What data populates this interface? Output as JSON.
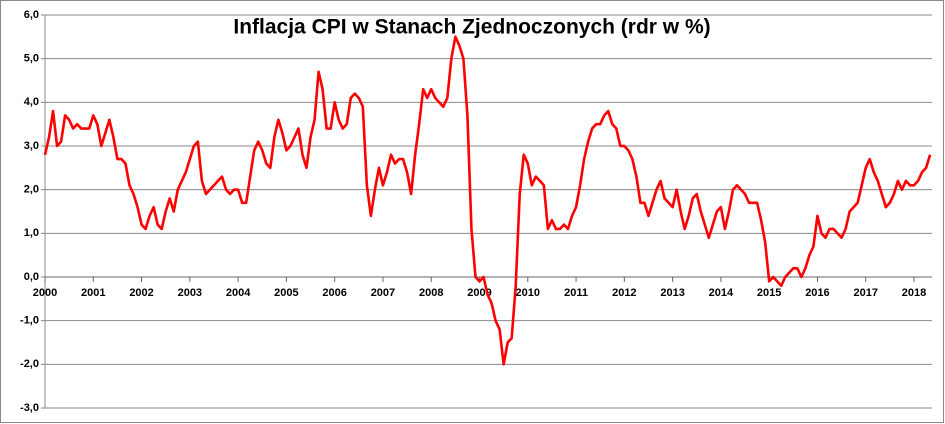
{
  "chart_data": {
    "type": "line",
    "title": "Inflacja CPI w Stanach Zjednoczonych (rdr w %)",
    "categories": [
      "2000",
      null,
      null,
      null,
      null,
      null,
      null,
      null,
      null,
      null,
      null,
      null,
      "2001",
      null,
      null,
      null,
      null,
      null,
      null,
      null,
      null,
      null,
      null,
      null,
      "2002",
      null,
      null,
      null,
      null,
      null,
      null,
      null,
      null,
      null,
      null,
      null,
      "2003",
      null,
      null,
      null,
      null,
      null,
      null,
      null,
      null,
      null,
      null,
      null,
      "2004",
      null,
      null,
      null,
      null,
      null,
      null,
      null,
      null,
      null,
      null,
      null,
      "2005",
      null,
      null,
      null,
      null,
      null,
      null,
      null,
      null,
      null,
      null,
      null,
      "2006",
      null,
      null,
      null,
      null,
      null,
      null,
      null,
      null,
      null,
      null,
      null,
      "2007",
      null,
      null,
      null,
      null,
      null,
      null,
      null,
      null,
      null,
      null,
      null,
      "2008",
      null,
      null,
      null,
      null,
      null,
      null,
      null,
      null,
      null,
      null,
      null,
      "2009",
      null,
      null,
      null,
      null,
      null,
      null,
      null,
      null,
      null,
      null,
      null,
      "2010",
      null,
      null,
      null,
      null,
      null,
      null,
      null,
      null,
      null,
      null,
      null,
      "2011",
      null,
      null,
      null,
      null,
      null,
      null,
      null,
      null,
      null,
      null,
      null,
      "2012",
      null,
      null,
      null,
      null,
      null,
      null,
      null,
      null,
      null,
      null,
      null,
      "2013",
      null,
      null,
      null,
      null,
      null,
      null,
      null,
      null,
      null,
      null,
      null,
      "2014",
      null,
      null,
      null,
      null,
      null,
      null,
      null,
      null,
      null,
      null,
      null,
      "2015",
      null,
      null,
      null,
      null,
      null,
      null,
      null,
      null,
      null,
      null,
      null,
      "2016",
      null,
      null,
      null,
      null,
      null,
      null,
      null,
      null,
      null,
      null,
      null,
      "2017",
      null,
      null,
      null,
      null,
      null,
      null,
      null,
      null,
      null,
      null,
      null,
      "2018",
      null,
      null,
      null,
      null
    ],
    "series": [
      {
        "name": "CPI",
        "color": "#ff0000",
        "values": [
          2.8,
          3.2,
          3.8,
          3.0,
          3.1,
          3.7,
          3.6,
          3.4,
          3.5,
          3.4,
          3.4,
          3.4,
          3.7,
          3.5,
          3.0,
          3.3,
          3.6,
          3.2,
          2.7,
          2.7,
          2.6,
          2.1,
          1.9,
          1.6,
          1.2,
          1.1,
          1.4,
          1.6,
          1.2,
          1.1,
          1.5,
          1.8,
          1.5,
          2.0,
          2.2,
          2.4,
          2.7,
          3.0,
          3.1,
          2.2,
          1.9,
          2.0,
          2.1,
          2.2,
          2.3,
          2.0,
          1.9,
          2.0,
          2.0,
          1.7,
          1.7,
          2.3,
          2.9,
          3.1,
          2.9,
          2.6,
          2.5,
          3.2,
          3.6,
          3.3,
          2.9,
          3.0,
          3.2,
          3.4,
          2.8,
          2.5,
          3.2,
          3.6,
          4.7,
          4.3,
          3.4,
          3.4,
          4.0,
          3.6,
          3.4,
          3.5,
          4.1,
          4.2,
          4.1,
          3.9,
          2.1,
          1.4,
          2.0,
          2.5,
          2.1,
          2.4,
          2.8,
          2.6,
          2.7,
          2.7,
          2.4,
          1.9,
          2.8,
          3.5,
          4.3,
          4.1,
          4.3,
          4.1,
          4.0,
          3.9,
          4.1,
          5.0,
          5.5,
          5.3,
          5.0,
          3.7,
          1.1,
          0.0,
          -0.1,
          0.0,
          -0.4,
          -0.6,
          -1.0,
          -1.2,
          -2.0,
          -1.5,
          -1.4,
          -0.2,
          1.9,
          2.8,
          2.6,
          2.1,
          2.3,
          2.2,
          2.1,
          1.1,
          1.3,
          1.1,
          1.1,
          1.2,
          1.1,
          1.4,
          1.6,
          2.1,
          2.7,
          3.1,
          3.4,
          3.5,
          3.5,
          3.7,
          3.8,
          3.5,
          3.4,
          3.0,
          3.0,
          2.9,
          2.7,
          2.3,
          1.7,
          1.7,
          1.4,
          1.7,
          2.0,
          2.2,
          1.8,
          1.7,
          1.6,
          2.0,
          1.5,
          1.1,
          1.4,
          1.8,
          1.9,
          1.5,
          1.2,
          0.9,
          1.2,
          1.5,
          1.6,
          1.1,
          1.5,
          2.0,
          2.1,
          2.0,
          1.9,
          1.7,
          1.7,
          1.7,
          1.3,
          0.8,
          -0.1,
          0.0,
          -0.1,
          -0.2,
          0.0,
          0.1,
          0.2,
          0.2,
          0.0,
          0.2,
          0.5,
          0.7,
          1.4,
          1.0,
          0.9,
          1.1,
          1.1,
          1.0,
          0.9,
          1.1,
          1.5,
          1.6,
          1.7,
          2.1,
          2.5,
          2.7,
          2.4,
          2.2,
          1.9,
          1.6,
          1.7,
          1.9,
          2.2,
          2.0,
          2.2,
          2.1,
          2.1,
          2.2,
          2.4,
          2.5,
          2.8
        ]
      }
    ],
    "ylim": [
      -3,
      6
    ],
    "yticks": [
      {
        "value": -3,
        "label": "-3,0"
      },
      {
        "value": -2,
        "label": "-2,0"
      },
      {
        "value": -1,
        "label": "-1,0"
      },
      {
        "value": 0,
        "label": "0,0"
      },
      {
        "value": 1,
        "label": "1,0"
      },
      {
        "value": 2,
        "label": "2,0"
      },
      {
        "value": 3,
        "label": "3,0"
      },
      {
        "value": 4,
        "label": "4,0"
      },
      {
        "value": 5,
        "label": "5,0"
      },
      {
        "value": 6,
        "label": "6,0"
      }
    ],
    "grid": true
  }
}
